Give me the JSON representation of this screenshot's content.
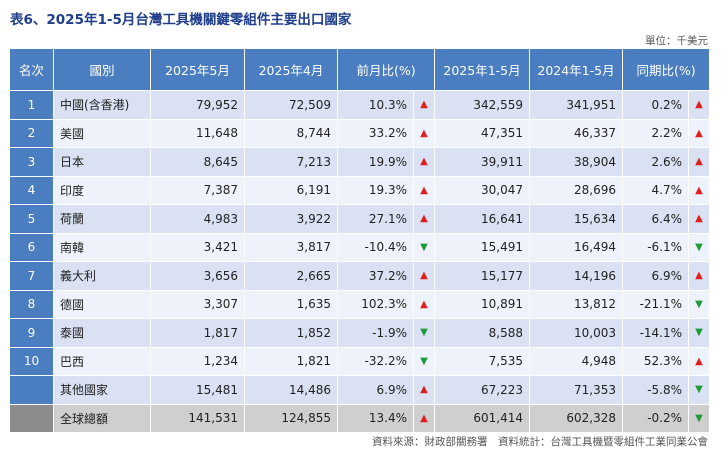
{
  "title": "表6、2025年1-5月台灣工具機關鍵零組件主要出口國家",
  "unit": "單位：千美元",
  "headers": {
    "rank": "名次",
    "country": "國別",
    "may2025": "2025年5月",
    "apr2025": "2025年4月",
    "mom": "前月比(%)",
    "ytd2025": "2025年1-5月",
    "ytd2024": "2024年1-5月",
    "yoy": "同期比(%)"
  },
  "colors": {
    "header_blue": "#4a7ec0",
    "up_red": "#e01e1e",
    "down_green": "#1f9a3a"
  },
  "rows": [
    {
      "rank": "1",
      "country": "中國(含香港)",
      "may2025": "79,952",
      "apr2025": "72,509",
      "mom": "10.3%",
      "mom_dir": "up",
      "ytd2025": "342,559",
      "ytd2024": "341,951",
      "yoy": "0.2%",
      "yoy_dir": "up"
    },
    {
      "rank": "2",
      "country": "美國",
      "may2025": "11,648",
      "apr2025": "8,744",
      "mom": "33.2%",
      "mom_dir": "up",
      "ytd2025": "47,351",
      "ytd2024": "46,337",
      "yoy": "2.2%",
      "yoy_dir": "up"
    },
    {
      "rank": "3",
      "country": "日本",
      "may2025": "8,645",
      "apr2025": "7,213",
      "mom": "19.9%",
      "mom_dir": "up",
      "ytd2025": "39,911",
      "ytd2024": "38,904",
      "yoy": "2.6%",
      "yoy_dir": "up"
    },
    {
      "rank": "4",
      "country": "印度",
      "may2025": "7,387",
      "apr2025": "6,191",
      "mom": "19.3%",
      "mom_dir": "up",
      "ytd2025": "30,047",
      "ytd2024": "28,696",
      "yoy": "4.7%",
      "yoy_dir": "up"
    },
    {
      "rank": "5",
      "country": "荷蘭",
      "may2025": "4,983",
      "apr2025": "3,922",
      "mom": "27.1%",
      "mom_dir": "up",
      "ytd2025": "16,641",
      "ytd2024": "15,634",
      "yoy": "6.4%",
      "yoy_dir": "up"
    },
    {
      "rank": "6",
      "country": "南韓",
      "may2025": "3,421",
      "apr2025": "3,817",
      "mom": "-10.4%",
      "mom_dir": "down",
      "ytd2025": "15,491",
      "ytd2024": "16,494",
      "yoy": "-6.1%",
      "yoy_dir": "down"
    },
    {
      "rank": "7",
      "country": "義大利",
      "may2025": "3,656",
      "apr2025": "2,665",
      "mom": "37.2%",
      "mom_dir": "up",
      "ytd2025": "15,177",
      "ytd2024": "14,196",
      "yoy": "6.9%",
      "yoy_dir": "up"
    },
    {
      "rank": "8",
      "country": "德國",
      "may2025": "3,307",
      "apr2025": "1,635",
      "mom": "102.3%",
      "mom_dir": "up",
      "ytd2025": "10,891",
      "ytd2024": "13,812",
      "yoy": "-21.1%",
      "yoy_dir": "down"
    },
    {
      "rank": "9",
      "country": "泰國",
      "may2025": "1,817",
      "apr2025": "1,852",
      "mom": "-1.9%",
      "mom_dir": "down",
      "ytd2025": "8,588",
      "ytd2024": "10,003",
      "yoy": "-14.1%",
      "yoy_dir": "down"
    },
    {
      "rank": "10",
      "country": "巴西",
      "may2025": "1,234",
      "apr2025": "1,821",
      "mom": "-32.2%",
      "mom_dir": "down",
      "ytd2025": "7,535",
      "ytd2024": "4,948",
      "yoy": "52.3%",
      "yoy_dir": "up"
    },
    {
      "rank": "",
      "country": "其他國家",
      "may2025": "15,481",
      "apr2025": "14,486",
      "mom": "6.9%",
      "mom_dir": "up",
      "ytd2025": "67,223",
      "ytd2024": "71,353",
      "yoy": "-5.8%",
      "yoy_dir": "down"
    },
    {
      "rank": "",
      "country": "全球總額",
      "may2025": "141,531",
      "apr2025": "124,855",
      "mom": "13.4%",
      "mom_dir": "up",
      "ytd2025": "601,414",
      "ytd2024": "602,328",
      "yoy": "-0.2%",
      "yoy_dir": "down",
      "total": true
    }
  ],
  "source": "資料來源：財政部關務署　資料統計：台灣工具機暨零組件工業同業公會"
}
